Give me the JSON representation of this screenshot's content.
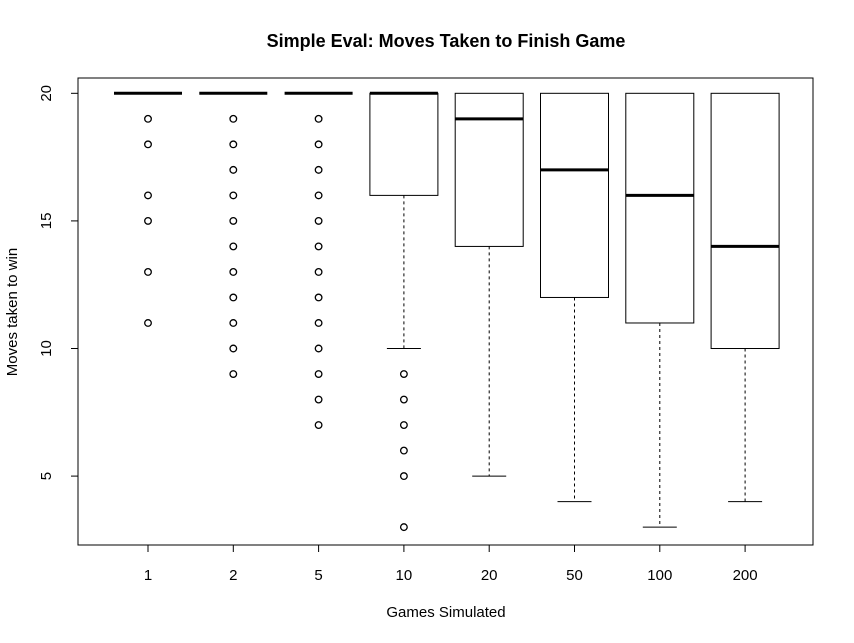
{
  "chart_data": {
    "type": "boxplot",
    "title": "Simple Eval: Moves Taken to Finish Game",
    "xlabel": "Games Simulated",
    "ylabel": "Moves taken to win",
    "categories": [
      "1",
      "2",
      "5",
      "10",
      "20",
      "50",
      "100",
      "200"
    ],
    "y_ticks": [
      5,
      10,
      15,
      20
    ],
    "ylim": [
      2.3,
      20.6
    ],
    "boxes": [
      {
        "category": "1",
        "q1": 20,
        "median": 20,
        "q3": 20,
        "whisker_low": 20,
        "whisker_high": 20,
        "outliers": [
          19,
          18,
          16,
          15,
          13,
          11
        ]
      },
      {
        "category": "2",
        "q1": 20,
        "median": 20,
        "q3": 20,
        "whisker_low": 20,
        "whisker_high": 20,
        "outliers": [
          19,
          18,
          17,
          16,
          15,
          14,
          13,
          12,
          11,
          10,
          9
        ]
      },
      {
        "category": "5",
        "q1": 20,
        "median": 20,
        "q3": 20,
        "whisker_low": 20,
        "whisker_high": 20,
        "outliers": [
          19,
          18,
          17,
          16,
          15,
          14,
          13,
          12,
          11,
          10,
          9,
          8,
          7
        ]
      },
      {
        "category": "10",
        "q1": 16,
        "median": 20,
        "q3": 20,
        "whisker_low": 10,
        "whisker_high": 20,
        "outliers": [
          9,
          8,
          7,
          6,
          5,
          3
        ]
      },
      {
        "category": "20",
        "q1": 14,
        "median": 19,
        "q3": 20,
        "whisker_low": 5,
        "whisker_high": 20,
        "outliers": []
      },
      {
        "category": "50",
        "q1": 12,
        "median": 17,
        "q3": 20,
        "whisker_low": 4,
        "whisker_high": 20,
        "outliers": []
      },
      {
        "category": "100",
        "q1": 11,
        "median": 16,
        "q3": 20,
        "whisker_low": 3,
        "whisker_high": 20,
        "outliers": []
      },
      {
        "category": "200",
        "q1": 10,
        "median": 14,
        "q3": 20,
        "whisker_low": 4,
        "whisker_high": 20,
        "outliers": []
      }
    ],
    "grid": false,
    "legend": "none",
    "colors": {
      "line": "#000000",
      "background": "#ffffff"
    }
  }
}
